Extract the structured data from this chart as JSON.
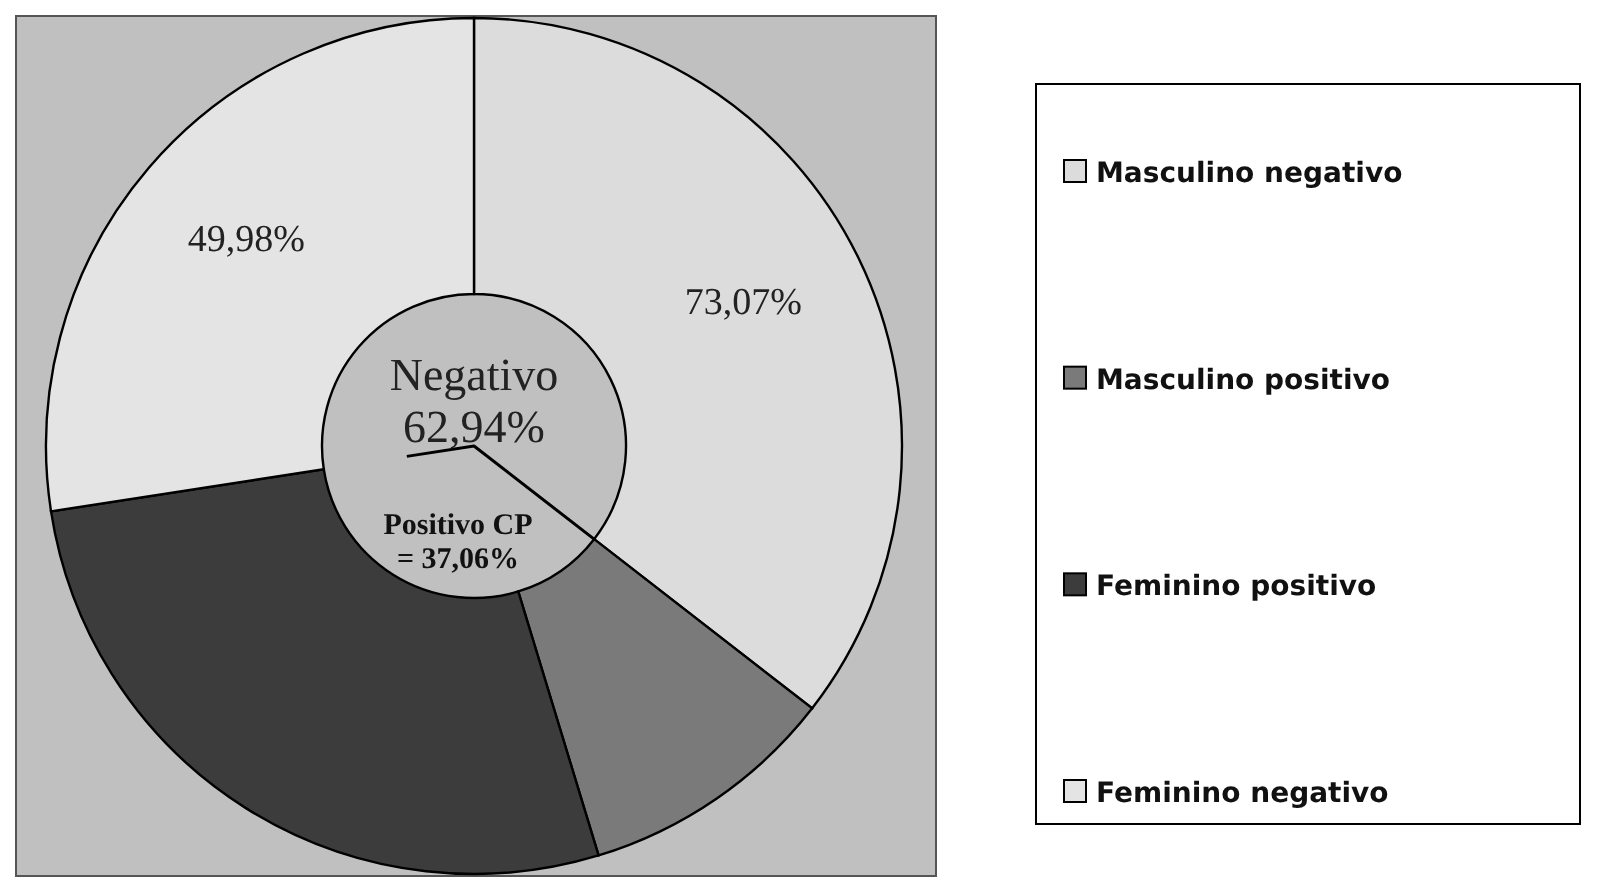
{
  "chart_data": {
    "type": "donut",
    "categories": [
      "Masculino negativo",
      "Masculino positivo",
      "Feminino positivo",
      "Feminino negativo"
    ],
    "values": [
      35.5,
      9.8,
      27.26,
      27.44
    ],
    "colors": [
      "#dcdcdc",
      "#7a7a7a",
      "#3c3c3c",
      "#e4e4e4"
    ],
    "annotations": [
      "Negativo 62,94%",
      "Positivo CP = 37,06%",
      {
        "text": "73,07%",
        "x": "Masculino negativo"
      },
      {
        "text": "49,98%",
        "x": "Feminino negativo"
      }
    ],
    "legend": "right"
  }
}
